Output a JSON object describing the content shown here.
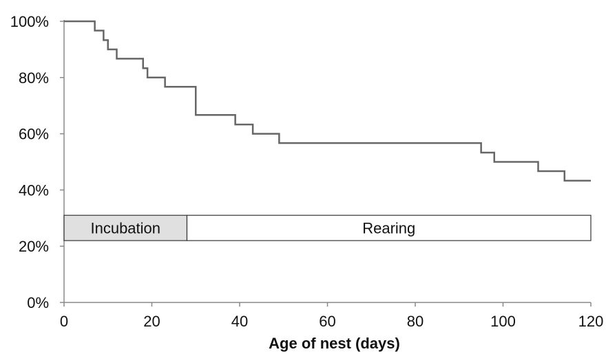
{
  "chart_data": {
    "type": "line",
    "title": "",
    "xlabel": "Age of nest (days)",
    "ylabel": "",
    "xlim": [
      0,
      120
    ],
    "ylim": [
      0,
      100
    ],
    "x_ticks": [
      0,
      20,
      40,
      60,
      80,
      100,
      120
    ],
    "y_ticks": [
      0,
      20,
      40,
      60,
      80,
      100
    ],
    "y_tick_labels": [
      "0%",
      "20%",
      "40%",
      "60%",
      "80%",
      "100%"
    ],
    "x_tick_labels": [
      "0",
      "20",
      "40",
      "60",
      "80",
      "100",
      "120"
    ],
    "grid": false,
    "step": true,
    "line_color": "#666666",
    "series": [
      {
        "x": [
          0,
          7,
          9,
          10,
          12,
          18,
          19,
          23,
          30,
          39,
          43,
          49,
          95,
          98,
          108,
          114,
          120
        ],
        "y": [
          100,
          96.7,
          93.3,
          90,
          86.7,
          83.3,
          80,
          76.7,
          66.7,
          63.3,
          60,
          56.7,
          53.3,
          50,
          46.7,
          43.3,
          43.3
        ]
      }
    ],
    "phases": [
      {
        "label": "Incubation",
        "x_start": 0,
        "x_end": 28,
        "fill": "#e0e0e0"
      },
      {
        "label": "Rearing",
        "x_start": 28,
        "x_end": 120,
        "fill": "#ffffff"
      }
    ],
    "phase_band_y": [
      22,
      31
    ]
  }
}
